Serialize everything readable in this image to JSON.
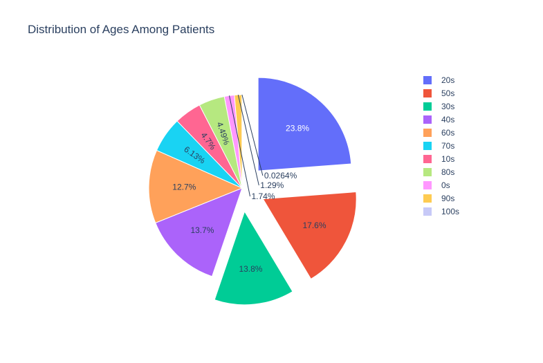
{
  "chart_data": {
    "type": "pie",
    "title": "Distribution of Ages Among Patients",
    "categories": [
      "20s",
      "50s",
      "30s",
      "40s",
      "60s",
      "70s",
      "10s",
      "80s",
      "0s",
      "90s",
      "100s"
    ],
    "values": [
      23.8,
      17.6,
      13.8,
      13.7,
      12.7,
      6.13,
      4.7,
      4.49,
      1.74,
      1.29,
      0.0264
    ],
    "labels": [
      "23.8%",
      "17.6%",
      "13.8%",
      "13.7%",
      "12.7%",
      "6.13%",
      "4.7%",
      "4.49%",
      "1.74%",
      "1.29%",
      "0.0264%"
    ],
    "colors": [
      "#636efa",
      "#EF553B",
      "#00cc96",
      "#ab63fa",
      "#FFA15A",
      "#19d3f3",
      "#FF6692",
      "#B6E880",
      "#FF97FF",
      "#FECB52",
      "#c7c9f7"
    ],
    "pulled": [
      "20s",
      "50s",
      "30s"
    ],
    "direction": "clockwise",
    "legend_position": "right"
  }
}
